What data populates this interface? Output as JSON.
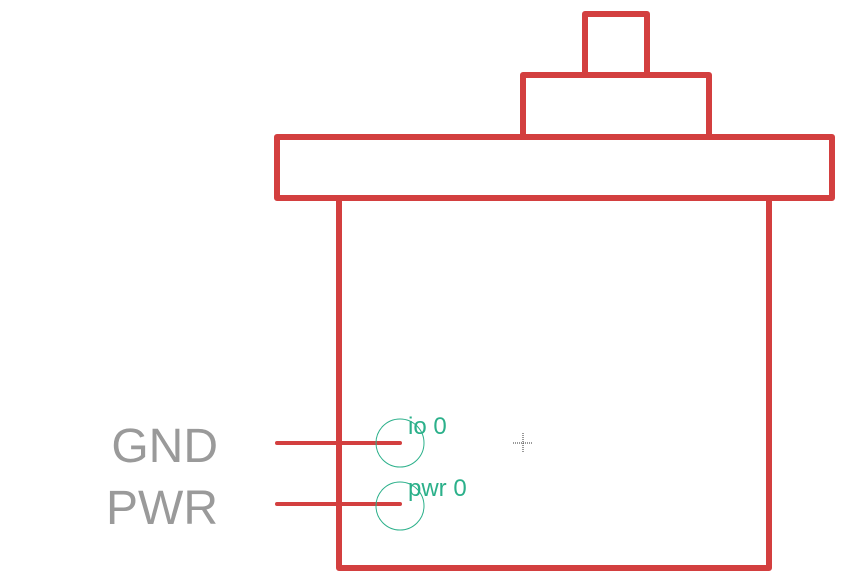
{
  "colors": {
    "outline": "#d33f3f",
    "pin_marker": "#2bb08a",
    "label": "#9a9a9a"
  },
  "pins": [
    {
      "name": "GND",
      "id": "io 0"
    },
    {
      "name": "PWR",
      "id": "pwr 0"
    }
  ]
}
